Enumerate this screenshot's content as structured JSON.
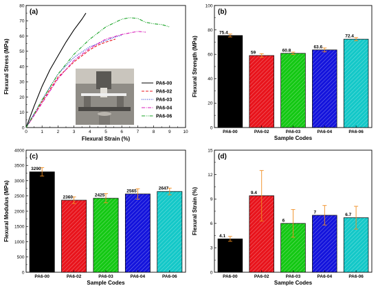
{
  "chart_data": [
    {
      "panel": "(a)",
      "type": "line",
      "xlabel": "Flexural Strain (%)",
      "ylabel": "Flexural Stress (MPa)",
      "xlim": [
        0,
        10
      ],
      "ylim": [
        0,
        80
      ],
      "xticks": [
        "0",
        "1",
        "2",
        "3",
        "4",
        "5",
        "6",
        "7",
        "8",
        "9",
        "10"
      ],
      "yticks": [
        "0",
        "10",
        "20",
        "30",
        "40",
        "50",
        "60",
        "70",
        "80"
      ],
      "legend": "bottom-right",
      "series": [
        {
          "name": "PA6-00",
          "color": "#000000",
          "dash": "",
          "x": [
            0,
            0.5,
            1,
            1.5,
            2,
            2.5,
            3,
            3.5,
            3.75
          ],
          "y": [
            0,
            14,
            27,
            38,
            47,
            56,
            64,
            71,
            75
          ]
        },
        {
          "name": "PA6-02",
          "color": "#e8141c",
          "dash": "4,2",
          "x": [
            0,
            0.5,
            1,
            2,
            3,
            4,
            4.5,
            5,
            5.3,
            5.6
          ],
          "y": [
            0,
            8,
            17,
            33,
            43,
            51,
            54,
            56,
            57,
            58
          ]
        },
        {
          "name": "PA6-03",
          "color": "#2233cc",
          "dash": "1.2,1.5",
          "x": [
            0,
            0.5,
            1,
            2,
            3,
            4,
            5,
            5.5,
            5.8,
            6
          ],
          "y": [
            0,
            9,
            18,
            35,
            46,
            53,
            57,
            59,
            60,
            60.5
          ]
        },
        {
          "name": "PA6-04",
          "color": "#d81ab8",
          "dash": "5,1.5,1,1.5",
          "x": [
            0,
            1,
            2,
            3,
            4,
            5,
            6,
            6.5,
            7,
            7.5
          ],
          "y": [
            0,
            16,
            32,
            44,
            52,
            58,
            61,
            62,
            63,
            62.5
          ]
        },
        {
          "name": "PA6-06",
          "color": "#17a325",
          "dash": "5,1.5,1,1.5,1,1.5",
          "x": [
            0,
            1,
            2,
            3,
            4,
            5,
            6,
            6.5,
            7,
            7.5,
            8,
            8.5,
            9
          ],
          "y": [
            0,
            18,
            35,
            48,
            58,
            66,
            71,
            72,
            71.5,
            69,
            68,
            67.5,
            66
          ]
        }
      ]
    },
    {
      "panel": "(b)",
      "type": "bar",
      "xlabel": "Sample Codes",
      "ylabel": "Flexural Strength (MPa)",
      "ylim": [
        0,
        100
      ],
      "yticks": [
        "0",
        "20",
        "40",
        "60",
        "80",
        "100"
      ],
      "categories": [
        "PA6-00",
        "PA6-02",
        "PA6-03",
        "PA6-04",
        "PA6-06"
      ],
      "values": [
        75.4,
        59,
        60.8,
        63.6,
        72.4
      ],
      "labels": [
        "75.4",
        "59",
        "60.8",
        "63.6",
        "72.4"
      ],
      "errors": [
        1.2,
        1.5,
        1.0,
        1.6,
        1.3
      ]
    },
    {
      "panel": "(c)",
      "type": "bar",
      "xlabel": "Sample Codes",
      "ylabel": "Flexural Modulus (MPa)",
      "ylim": [
        0,
        4000
      ],
      "yticks": [
        "0",
        "500",
        "1000",
        "1500",
        "2000",
        "2500",
        "3000",
        "3500",
        "4000"
      ],
      "categories": [
        "PA6-00",
        "PA6-02",
        "PA6-03",
        "PA6-04",
        "PA6-06"
      ],
      "values": [
        3290,
        2360,
        2425,
        2565,
        2647
      ],
      "labels": [
        "3290",
        "2360",
        "2425",
        "2565",
        "2647"
      ],
      "errors": [
        140,
        110,
        150,
        170,
        110
      ]
    },
    {
      "panel": "(d)",
      "type": "bar",
      "xlabel": "Sample Codes",
      "ylabel": "Flexural Strain (%)",
      "ylim": [
        0,
        15
      ],
      "yticks": [
        "0",
        "3",
        "6",
        "9",
        "12",
        "15"
      ],
      "categories": [
        "PA6-00",
        "PA6-02",
        "PA6-03",
        "PA6-04",
        "PA6-06"
      ],
      "values": [
        4.1,
        9.4,
        6,
        7,
        6.7
      ],
      "labels": [
        "4.1",
        "9.4",
        "6",
        "7",
        "6.7"
      ],
      "errors": [
        0.3,
        3.1,
        1.7,
        1.2,
        1.4
      ]
    }
  ],
  "bar_colors": [
    "#000000",
    "#e8141c",
    "#14c814",
    "#1414dc",
    "#14c8c8"
  ],
  "error_color": "#f08c1e"
}
